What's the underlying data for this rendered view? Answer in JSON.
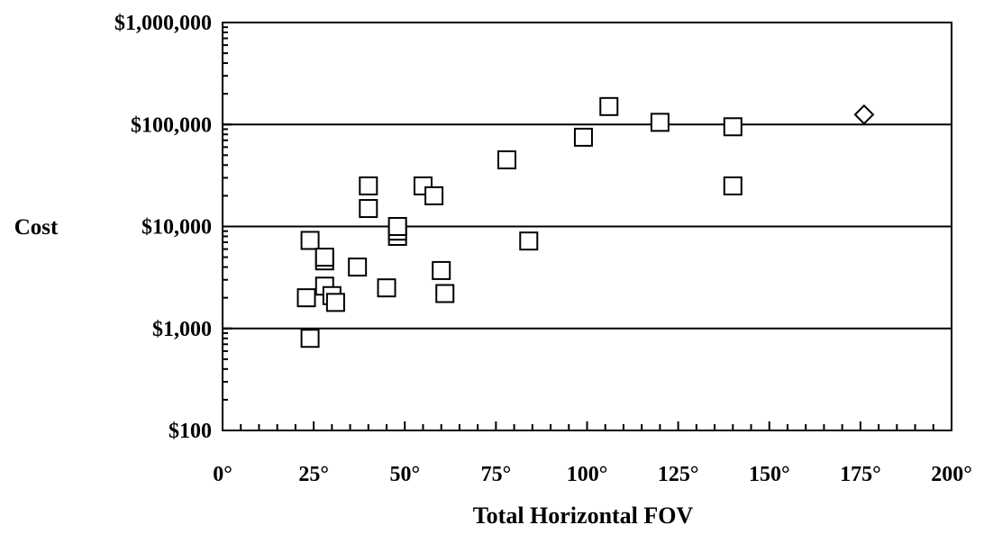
{
  "chart_data": {
    "type": "scatter",
    "title": "",
    "xlabel": "Total Horizontal FOV",
    "ylabel": "Cost",
    "x_scale": "linear",
    "y_scale": "log",
    "xlim": [
      0,
      200
    ],
    "ylim": [
      100,
      1000000
    ],
    "x_ticks": [
      {
        "value": 0,
        "label": "0°"
      },
      {
        "value": 25,
        "label": "25°"
      },
      {
        "value": 50,
        "label": "50°"
      },
      {
        "value": 75,
        "label": "75°"
      },
      {
        "value": 100,
        "label": "100°"
      },
      {
        "value": 125,
        "label": "125°"
      },
      {
        "value": 150,
        "label": "150°"
      },
      {
        "value": 175,
        "label": "175°"
      },
      {
        "value": 200,
        "label": "200°"
      }
    ],
    "y_ticks": [
      {
        "value": 100,
        "label": "$100"
      },
      {
        "value": 1000,
        "label": "$1,000"
      },
      {
        "value": 10000,
        "label": "$10,000"
      },
      {
        "value": 100000,
        "label": "$100,000"
      },
      {
        "value": 1000000,
        "label": "$1,000,000"
      }
    ],
    "gridlines_y": [
      1000,
      10000,
      100000
    ],
    "grid": "horizontal major gridlines",
    "legend": "none",
    "series": [
      {
        "marker": "square",
        "color": "#000000",
        "points": [
          [
            23,
            2000
          ],
          [
            24,
            800
          ],
          [
            24,
            7300
          ],
          [
            28,
            4600
          ],
          [
            28,
            5000
          ],
          [
            28,
            2600
          ],
          [
            30,
            2100
          ],
          [
            31,
            1800
          ],
          [
            37,
            4000
          ],
          [
            40,
            25000
          ],
          [
            40,
            15000
          ],
          [
            45,
            2500
          ],
          [
            48,
            8000
          ],
          [
            48,
            9000
          ],
          [
            48,
            10000
          ],
          [
            55,
            25000
          ],
          [
            58,
            20000
          ],
          [
            60,
            3700
          ],
          [
            61,
            2200
          ],
          [
            78,
            45000
          ],
          [
            84,
            7200
          ],
          [
            99,
            75000
          ],
          [
            106,
            150000
          ],
          [
            120,
            105000
          ],
          [
            140,
            95000
          ],
          [
            140,
            25000
          ]
        ]
      },
      {
        "marker": "diamond",
        "color": "#000000",
        "points": [
          [
            176,
            125000
          ]
        ]
      }
    ]
  }
}
